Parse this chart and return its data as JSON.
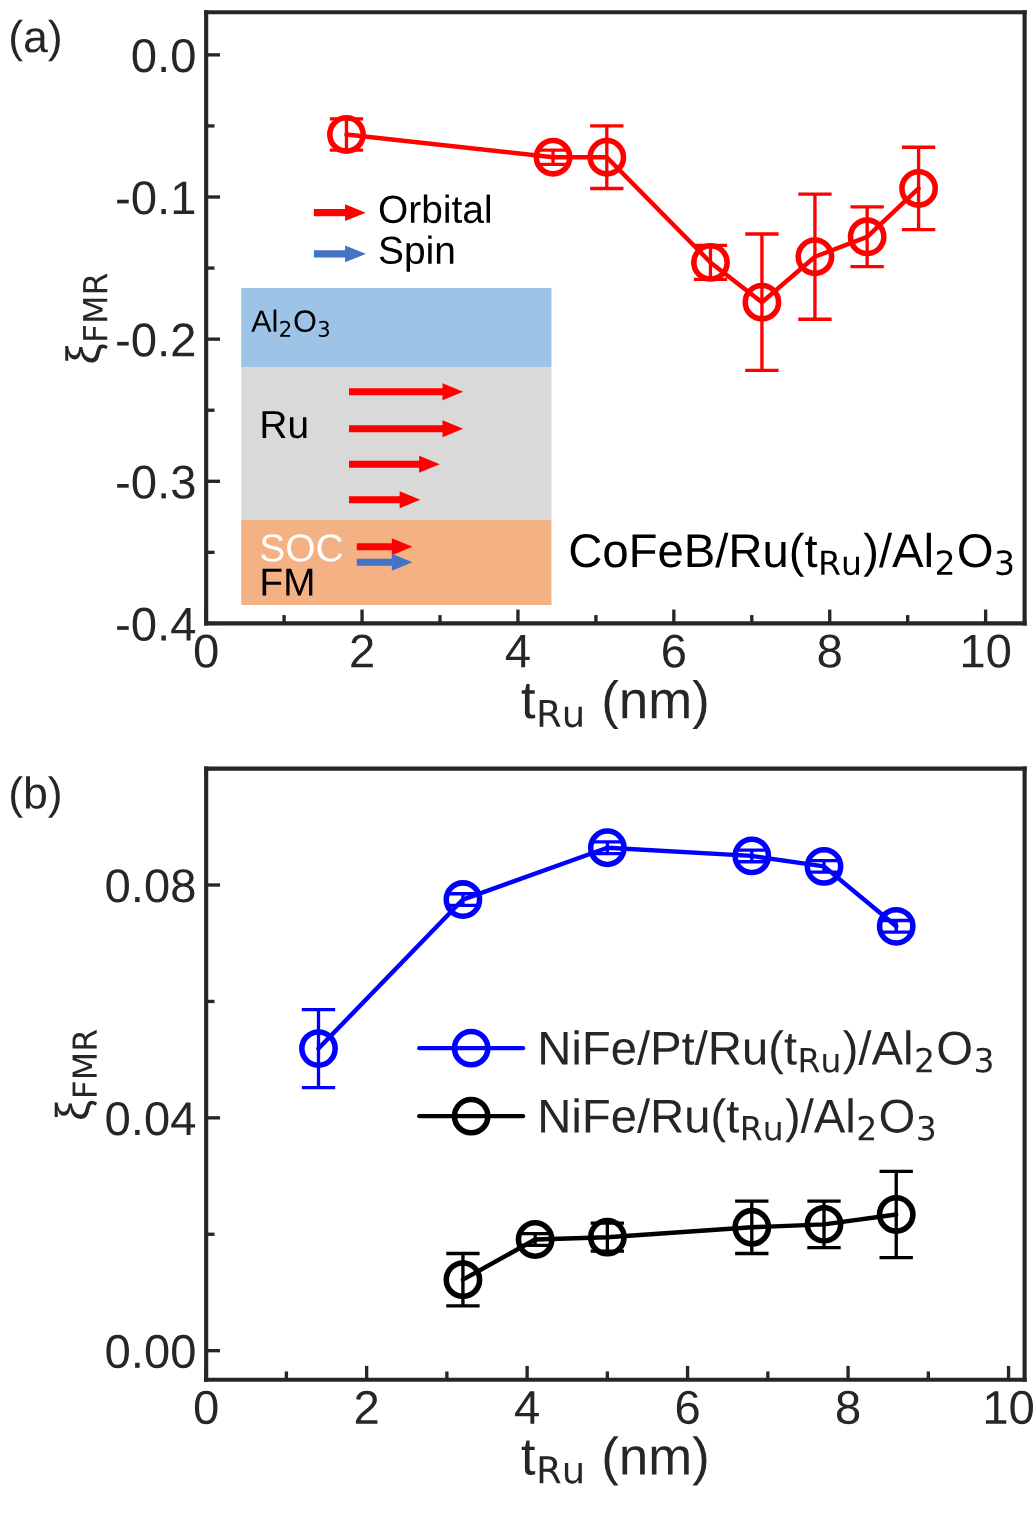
{
  "chart_data": [
    {
      "type": "line",
      "title": "(a)",
      "xlabel": "t$_{Ru}$ (nm)",
      "ylabel": "ξ$_{FMR}$",
      "xlim": [
        0,
        10.5
      ],
      "ylim": [
        -0.4,
        0.03
      ],
      "xticks": [
        0,
        2,
        4,
        6,
        8,
        10
      ],
      "yticks": [
        {
          "value": 0.0,
          "label": "0.0"
        },
        -0.1,
        -0.2,
        -0.3,
        -0.4
      ],
      "marker": "circle",
      "line_style": "solid",
      "grid": false,
      "legend": false,
      "series": [
        {
          "color": "#ff0000",
          "x": [
            1.8,
            4.45,
            5.14,
            6.47,
            7.13,
            7.81,
            8.48,
            9.14
          ],
          "values": [
            -0.056,
            -0.072,
            -0.072,
            -0.146,
            -0.174,
            -0.142,
            -0.128,
            -0.094
          ],
          "errors": [
            0.011,
            0.005,
            0.022,
            0.012,
            0.048,
            0.044,
            0.021,
            0.029
          ]
        }
      ],
      "annotations": [
        "CoFeB/Ru(t$_{Ru}$)/Al$_{2}$O$_{3}$",
        "Orbital",
        "Spin",
        "Al$_{2}$O$_{3}$",
        "Ru",
        "SOC",
        "FM"
      ]
    },
    {
      "type": "line",
      "title": "(b)",
      "xlabel": "t$_{Ru}$ (nm)",
      "ylabel": "ξ$_{FMR}$",
      "xlim": [
        0,
        10.2
      ],
      "ylim": [
        -0.005,
        0.1
      ],
      "xticks": [
        0,
        2,
        4,
        6,
        8,
        10
      ],
      "yticks": [
        {
          "value": 0.0,
          "label": "0.00"
        },
        {
          "value": 0.04,
          "label": "0.04"
        },
        {
          "value": 0.08,
          "label": "0.08"
        }
      ],
      "marker": "circle",
      "line_style": "solid",
      "grid": false,
      "legend": "right",
      "series": [
        {
          "name": "NiFe/Pt/Ru(t$_{Ru}$)/Al$_{2}$O$_{3}$",
          "color": "#0000ff",
          "x": [
            1.4,
            3.2,
            5.0,
            6.8,
            7.7,
            8.6
          ],
          "values": [
            0.0519,
            0.0775,
            0.0864,
            0.085,
            0.0832,
            0.0729
          ],
          "errors": [
            0.0067,
            0.001,
            0.001,
            0.001,
            0.001,
            0.001
          ]
        },
        {
          "name": "NiFe/Ru(t$_{Ru}$)/Al$_{2}$O$_{3}$",
          "color": "#000000",
          "x": [
            3.2,
            4.1,
            5.0,
            6.8,
            7.7,
            8.6
          ],
          "values": [
            0.0122,
            0.0191,
            0.0195,
            0.0212,
            0.0217,
            0.0234
          ],
          "errors": [
            0.0045,
            0.001,
            0.0024,
            0.0045,
            0.004,
            0.0074
          ]
        }
      ]
    }
  ]
}
